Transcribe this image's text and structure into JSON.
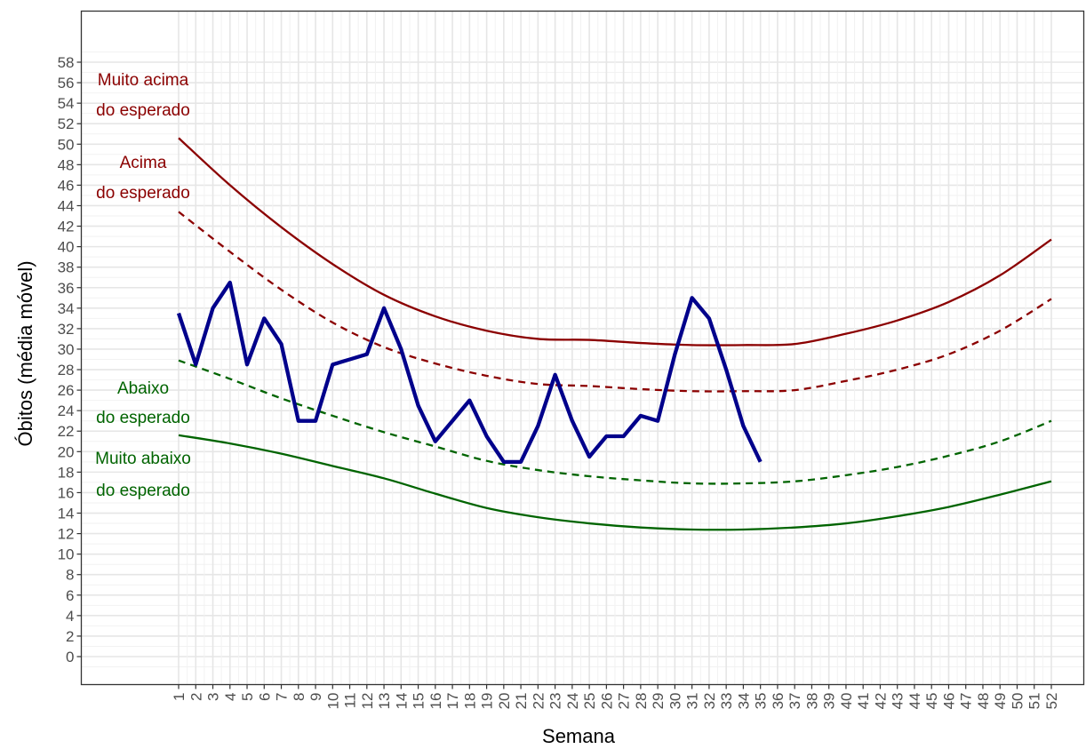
{
  "chart_data": {
    "type": "line",
    "title": "",
    "xlabel": "Semana",
    "ylabel": "Óbitos (média móvel)",
    "xlim": [
      1,
      52
    ],
    "ylim": [
      0,
      58
    ],
    "grid": true,
    "x_ticks": [
      1,
      2,
      3,
      4,
      5,
      6,
      7,
      8,
      9,
      10,
      11,
      12,
      13,
      14,
      15,
      16,
      17,
      18,
      19,
      20,
      21,
      22,
      23,
      24,
      25,
      26,
      27,
      28,
      29,
      30,
      31,
      32,
      33,
      34,
      35,
      36,
      37,
      38,
      39,
      40,
      41,
      42,
      43,
      44,
      45,
      46,
      47,
      48,
      49,
      50,
      51,
      52
    ],
    "y_ticks": [
      0,
      2,
      4,
      6,
      8,
      10,
      12,
      14,
      16,
      18,
      20,
      22,
      24,
      26,
      28,
      30,
      32,
      34,
      36,
      38,
      40,
      42,
      44,
      46,
      48,
      50,
      52,
      54,
      56,
      58
    ],
    "series": [
      {
        "name": "",
        "color": "#8b0000",
        "style": "solid",
        "x": [
          1,
          4,
          7,
          10,
          13,
          16,
          19,
          22,
          25,
          28,
          31,
          34,
          37,
          40,
          43,
          46,
          49,
          52
        ],
        "values": [
          50.6,
          46.0,
          41.9,
          38.3,
          35.3,
          33.2,
          31.8,
          31.0,
          30.9,
          30.6,
          30.4,
          30.4,
          30.5,
          31.5,
          32.8,
          34.6,
          37.2,
          40.7
        ]
      },
      {
        "name": "",
        "color": "#8b0000",
        "style": "dashed",
        "x": [
          1,
          4,
          7,
          10,
          13,
          16,
          19,
          22,
          25,
          28,
          31,
          34,
          37,
          40,
          43,
          46,
          49,
          52
        ],
        "values": [
          43.4,
          39.5,
          35.8,
          32.6,
          30.2,
          28.6,
          27.4,
          26.6,
          26.4,
          26.1,
          25.9,
          25.9,
          26.0,
          26.9,
          28.0,
          29.5,
          31.8,
          34.9
        ]
      },
      {
        "name": "",
        "color": "#006400",
        "style": "dashed",
        "x": [
          1,
          4,
          7,
          10,
          13,
          16,
          19,
          22,
          25,
          28,
          31,
          34,
          37,
          40,
          43,
          46,
          49,
          52
        ],
        "values": [
          28.9,
          27.1,
          25.2,
          23.5,
          21.9,
          20.5,
          19.1,
          18.2,
          17.6,
          17.2,
          16.9,
          16.9,
          17.1,
          17.7,
          18.5,
          19.6,
          21.0,
          23.0
        ]
      },
      {
        "name": "",
        "color": "#006400",
        "style": "solid",
        "x": [
          1,
          4,
          7,
          10,
          13,
          16,
          19,
          22,
          25,
          28,
          31,
          34,
          37,
          40,
          43,
          46,
          49,
          52
        ],
        "values": [
          21.6,
          20.8,
          19.8,
          18.6,
          17.4,
          15.9,
          14.5,
          13.6,
          13.0,
          12.6,
          12.4,
          12.4,
          12.6,
          13.0,
          13.7,
          14.6,
          15.8,
          17.1
        ]
      },
      {
        "name": "",
        "color": "#00008b",
        "style": "solid-thick",
        "x": [
          1,
          2,
          3,
          4,
          5,
          6,
          7,
          8,
          9,
          10,
          11,
          12,
          13,
          14,
          15,
          16,
          17,
          18,
          19,
          20,
          21,
          22,
          23,
          24,
          25,
          26,
          27,
          28,
          29,
          30,
          31,
          32,
          33,
          34,
          35
        ],
        "values": [
          33.5,
          28.5,
          34.0,
          36.5,
          28.5,
          33.0,
          30.5,
          23.0,
          23.0,
          28.5,
          29.0,
          29.5,
          34.0,
          30.0,
          24.5,
          21.0,
          23.0,
          25.0,
          21.5,
          19.0,
          19.0,
          22.5,
          27.5,
          23.0,
          19.5,
          21.5,
          21.5,
          23.5,
          23.0,
          29.5,
          35.0,
          33.0,
          28.0,
          22.5,
          19.0
        ]
      }
    ],
    "annotations": [
      {
        "lines": [
          "Muito acima",
          "do esperado"
        ],
        "color": "#8b0000"
      },
      {
        "lines": [
          "Acima",
          "do esperado"
        ],
        "color": "#8b0000"
      },
      {
        "lines": [
          "Abaixo",
          "do esperado"
        ],
        "color": "#006400"
      },
      {
        "lines": [
          "Muito abaixo",
          "do esperado"
        ],
        "color": "#006400"
      }
    ]
  }
}
